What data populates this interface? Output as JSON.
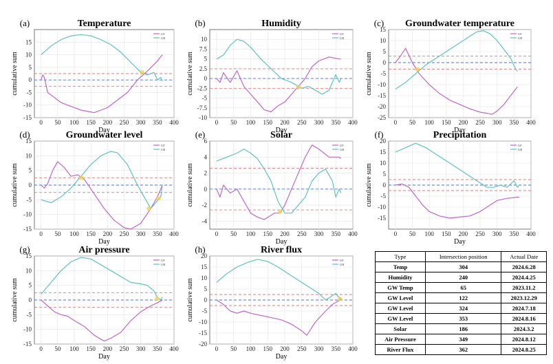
{
  "colors": {
    "up": "#c066c6",
    "down": "#5fc2bc",
    "thr_up": "#e0787a",
    "thr_lo": "#e0787a",
    "zero": "#4a6fd8",
    "mark": "#f0d24a"
  },
  "legend": [
    "UF",
    "UB"
  ],
  "axis_label_x": "Day",
  "axis_label_y": "cumulative sum",
  "chart_data": [
    {
      "id": "a",
      "panel_label": "(a)",
      "title": "Temperature",
      "type": "line",
      "xlim": [
        -20,
        400
      ],
      "ylim": [
        -15,
        20
      ],
      "xticks": [
        0,
        50,
        100,
        150,
        200,
        250,
        300,
        350,
        400
      ],
      "yticks": [
        -15,
        -10,
        -5,
        0,
        5,
        10,
        15
      ],
      "thresholds": [
        2.5,
        -2.5
      ],
      "series": [
        {
          "name": "UF",
          "color": "up",
          "x": [
            0,
            5,
            10,
            20,
            40,
            60,
            80,
            100,
            120,
            140,
            160,
            180,
            200,
            230,
            260,
            290,
            320,
            350,
            365
          ],
          "y": [
            0,
            2,
            1,
            -5,
            -7,
            -9,
            -10,
            -11,
            -12,
            -12.5,
            -13,
            -12,
            -11,
            -8,
            -5,
            0,
            3.5,
            7.5,
            10
          ]
        },
        {
          "name": "UB",
          "color": "down",
          "x": [
            0,
            30,
            60,
            90,
            120,
            150,
            180,
            210,
            240,
            270,
            300,
            320,
            340,
            350,
            360,
            365
          ],
          "y": [
            10,
            13.5,
            16,
            17.5,
            18,
            17.5,
            16,
            14,
            11,
            7,
            3,
            2,
            3,
            0,
            1,
            -0.5
          ]
        }
      ],
      "markers": [
        {
          "x": 304,
          "y": 3
        }
      ]
    },
    {
      "id": "b",
      "panel_label": "(b)",
      "title": "Humidity",
      "type": "line",
      "xlim": [
        -20,
        400
      ],
      "ylim": [
        -10,
        12.5
      ],
      "xticks": [
        0,
        50,
        100,
        150,
        200,
        250,
        300,
        350,
        400
      ],
      "yticks": [
        -10,
        -7.5,
        -5,
        -2.5,
        0,
        2.5,
        5,
        7.5,
        10
      ],
      "thresholds": [
        2.5,
        -2.5
      ],
      "series": [
        {
          "name": "UF",
          "color": "up",
          "x": [
            0,
            10,
            20,
            40,
            60,
            80,
            100,
            120,
            140,
            160,
            180,
            200,
            220,
            240,
            260,
            280,
            300,
            330,
            360,
            365
          ],
          "y": [
            0,
            -1,
            1.5,
            -1,
            2,
            -2,
            -4,
            -6,
            -8,
            -8.5,
            -7,
            -6,
            -4,
            -2,
            0,
            3,
            4.5,
            5.5,
            5,
            5
          ]
        },
        {
          "name": "UB",
          "color": "down",
          "x": [
            0,
            20,
            40,
            60,
            80,
            100,
            130,
            160,
            190,
            220,
            250,
            270,
            290,
            310,
            330,
            350,
            360,
            365
          ],
          "y": [
            5,
            6,
            8.5,
            10,
            9.5,
            8,
            5,
            2.5,
            0,
            -1,
            -2.5,
            -2,
            -3,
            -4,
            -3,
            1,
            -1,
            0
          ]
        }
      ],
      "markers": [
        {
          "x": 240,
          "y": -2.2
        }
      ]
    },
    {
      "id": "c",
      "panel_label": "(c)",
      "title": "Groundwater temperature",
      "type": "line",
      "xlim": [
        -20,
        400
      ],
      "ylim": [
        -25,
        15
      ],
      "xticks": [
        0,
        50,
        100,
        150,
        200,
        250,
        300,
        350,
        400
      ],
      "yticks": [
        -25,
        -20,
        -15,
        -10,
        -5,
        0,
        5,
        10,
        15
      ],
      "thresholds": [
        3,
        -3
      ],
      "series": [
        {
          "name": "UF",
          "color": "up",
          "x": [
            0,
            15,
            30,
            50,
            70,
            100,
            130,
            160,
            190,
            220,
            250,
            270,
            285,
            300,
            320,
            340,
            360
          ],
          "y": [
            0,
            3,
            6.5,
            0,
            -5,
            -10,
            -14,
            -17,
            -19,
            -21,
            -22.5,
            -23,
            -23.5,
            -22,
            -19,
            -15,
            -11
          ]
        },
        {
          "name": "UB",
          "color": "down",
          "x": [
            0,
            30,
            60,
            90,
            120,
            150,
            180,
            210,
            240,
            260,
            280,
            300,
            320,
            340,
            355,
            360
          ],
          "y": [
            -12,
            -9,
            -5,
            -1,
            2,
            5,
            8,
            11,
            14,
            14.5,
            13,
            10,
            6,
            2,
            -3,
            -4
          ]
        }
      ],
      "markers": [
        {
          "x": 65,
          "y": -3
        }
      ]
    },
    {
      "id": "d",
      "panel_label": "(d)",
      "title": "Groundwater level",
      "type": "line",
      "xlim": [
        -20,
        400
      ],
      "ylim": [
        -15,
        15
      ],
      "xticks": [
        0,
        50,
        100,
        150,
        200,
        250,
        300,
        350,
        400
      ],
      "yticks": [
        -15,
        -10,
        -5,
        0,
        5,
        10,
        15
      ],
      "thresholds": [
        2.5,
        -2.5
      ],
      "series": [
        {
          "name": "UF",
          "color": "up",
          "x": [
            0,
            10,
            20,
            35,
            50,
            70,
            90,
            110,
            130,
            160,
            190,
            220,
            250,
            270,
            300,
            330,
            350,
            365
          ],
          "y": [
            0,
            -1,
            0.5,
            5,
            8,
            6,
            3,
            3.5,
            2,
            -3,
            -8,
            -12,
            -14.5,
            -15,
            -13,
            -8,
            -4,
            0
          ]
        },
        {
          "name": "UB",
          "color": "down",
          "x": [
            0,
            30,
            60,
            90,
            120,
            150,
            180,
            210,
            230,
            260,
            290,
            310,
            330,
            345,
            360,
            365
          ],
          "y": [
            -5,
            -6,
            -4,
            -1,
            3,
            7,
            10,
            11.5,
            11,
            7,
            0,
            -4,
            -8,
            -6,
            -4,
            0
          ]
        }
      ],
      "markers": [
        {
          "x": 122,
          "y": 2.5
        },
        {
          "x": 324,
          "y": -8
        },
        {
          "x": 353,
          "y": -4.5
        }
      ]
    },
    {
      "id": "e",
      "panel_label": "(e)",
      "title": "Solar",
      "type": "line",
      "xlim": [
        -20,
        400
      ],
      "ylim": [
        -5,
        6
      ],
      "xticks": [
        0,
        50,
        100,
        150,
        200,
        250,
        300,
        350,
        400
      ],
      "yticks": [
        -4,
        -2,
        0,
        2,
        4,
        6
      ],
      "thresholds": [
        2.6,
        -2.6
      ],
      "series": [
        {
          "name": "UF",
          "color": "up",
          "x": [
            0,
            10,
            20,
            40,
            60,
            80,
            100,
            120,
            140,
            170,
            186,
            200,
            220,
            240,
            260,
            280,
            300,
            330,
            360,
            365
          ],
          "y": [
            0,
            -1,
            0.5,
            -0.5,
            0,
            -1.5,
            -3,
            -3.5,
            -3.8,
            -3,
            -3,
            -2,
            0,
            2,
            4,
            5.5,
            5,
            4,
            4,
            3.8
          ]
        },
        {
          "name": "UB",
          "color": "down",
          "x": [
            0,
            30,
            60,
            80,
            100,
            120,
            140,
            160,
            180,
            200,
            220,
            240,
            260,
            280,
            300,
            320,
            340,
            350,
            360,
            365
          ],
          "y": [
            3.5,
            4,
            4.5,
            5,
            4.5,
            3.8,
            2.5,
            1,
            -1.5,
            -3,
            -3,
            -2,
            -1,
            1,
            2,
            2.5,
            1,
            -1,
            0,
            -0.5
          ]
        }
      ],
      "markers": [
        {
          "x": 186,
          "y": -2.8
        }
      ]
    },
    {
      "id": "f",
      "panel_label": "(f)",
      "title": "Precipitation",
      "type": "line",
      "xlim": [
        -20,
        400
      ],
      "ylim": [
        -20,
        20
      ],
      "xticks": [
        0,
        50,
        100,
        150,
        200,
        250,
        300,
        350,
        400
      ],
      "yticks": [
        -15,
        -10,
        -5,
        0,
        5,
        10,
        15,
        20
      ],
      "thresholds": [
        2.5,
        -2.5
      ],
      "series": [
        {
          "name": "UF",
          "color": "up",
          "x": [
            0,
            20,
            40,
            60,
            80,
            100,
            130,
            160,
            190,
            220,
            250,
            280,
            300,
            330,
            360,
            365
          ],
          "y": [
            0,
            0.5,
            -1,
            -5,
            -9,
            -12,
            -14,
            -15,
            -14.5,
            -14,
            -12,
            -9,
            -7,
            -6,
            -5.5,
            -5.5
          ]
        },
        {
          "name": "UB",
          "color": "down",
          "x": [
            0,
            30,
            60,
            90,
            120,
            150,
            180,
            210,
            240,
            270,
            290,
            310,
            330,
            350,
            360,
            365
          ],
          "y": [
            15,
            17,
            19,
            17,
            14,
            11,
            8,
            5,
            2,
            -1,
            -1,
            0,
            -1,
            2,
            -1,
            0
          ]
        }
      ],
      "markers": []
    },
    {
      "id": "g",
      "panel_label": "(g)",
      "title": "Air pressure",
      "type": "line",
      "xlim": [
        -20,
        400
      ],
      "ylim": [
        -15,
        15
      ],
      "xticks": [
        0,
        50,
        100,
        150,
        200,
        250,
        300,
        350,
        400
      ],
      "yticks": [
        -15,
        -10,
        -5,
        0,
        5,
        10,
        15
      ],
      "thresholds": [
        2.5,
        -2.5
      ],
      "series": [
        {
          "name": "UF",
          "color": "up",
          "x": [
            0,
            20,
            40,
            60,
            80,
            100,
            130,
            160,
            190,
            210,
            240,
            270,
            300,
            330,
            349,
            365
          ],
          "y": [
            0,
            -2,
            -4,
            -5,
            -5.5,
            -7,
            -9,
            -12,
            -14,
            -13,
            -11,
            -7,
            -4,
            -2,
            -1,
            0
          ]
        },
        {
          "name": "UB",
          "color": "down",
          "x": [
            0,
            30,
            60,
            90,
            120,
            150,
            180,
            210,
            240,
            270,
            300,
            320,
            340,
            349,
            360,
            365
          ],
          "y": [
            2,
            6,
            10,
            13,
            14.5,
            14,
            12,
            10,
            8,
            6,
            5.5,
            5,
            3,
            1,
            0,
            1
          ]
        }
      ],
      "markers": [
        {
          "x": 349,
          "y": 0.5
        }
      ]
    },
    {
      "id": "h",
      "panel_label": "(h)",
      "title": "River flux",
      "type": "line",
      "xlim": [
        -20,
        400
      ],
      "ylim": [
        -20,
        20
      ],
      "xticks": [
        0,
        50,
        100,
        150,
        200,
        250,
        300,
        350,
        400
      ],
      "yticks": [
        -20,
        -15,
        -10,
        -5,
        0,
        5,
        10,
        15,
        20
      ],
      "thresholds": [
        2.5,
        -2.5
      ],
      "series": [
        {
          "name": "UF",
          "color": "up",
          "x": [
            0,
            20,
            40,
            60,
            80,
            100,
            130,
            160,
            190,
            220,
            250,
            265,
            290,
            320,
            340,
            362,
            365
          ],
          "y": [
            0,
            -2,
            -5,
            -6,
            -5,
            -6,
            -7,
            -8,
            -9,
            -11,
            -14,
            -16,
            -10,
            -5,
            -2,
            0,
            0.5
          ]
        },
        {
          "name": "UB",
          "color": "down",
          "x": [
            0,
            30,
            60,
            90,
            120,
            150,
            180,
            210,
            240,
            270,
            300,
            320,
            340,
            350,
            362,
            365
          ],
          "y": [
            8,
            12,
            15,
            17,
            18.5,
            17.5,
            15,
            12,
            9,
            6,
            3,
            0,
            2,
            3,
            0.5,
            1
          ]
        }
      ],
      "markers": [
        {
          "x": 362,
          "y": 0.5
        }
      ]
    }
  ],
  "table": {
    "headers": [
      "Type",
      "Intersection position",
      "Actual  Date"
    ],
    "rows": [
      [
        "Temp",
        "304",
        "2024.6.28"
      ],
      [
        "Humidity",
        "240",
        "2024.4.25"
      ],
      [
        "GW Temp",
        "65",
        "2023.11.2"
      ],
      [
        "GW Level",
        "122",
        "2023.12.29"
      ],
      [
        "GW Level",
        "324",
        "2024.7.18"
      ],
      [
        "GW Level",
        "353",
        "2024.8.16"
      ],
      [
        "Solar",
        "186",
        "2024.3.2"
      ],
      [
        "Air Pressure",
        "349",
        "2024.8.12"
      ],
      [
        "River Flux",
        "362",
        "2024.8.25"
      ]
    ]
  }
}
